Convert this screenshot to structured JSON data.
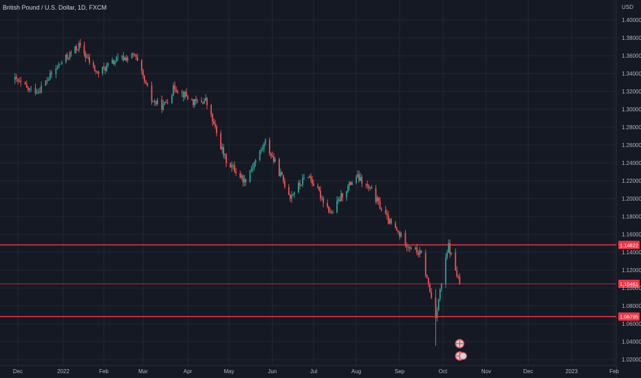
{
  "header": {
    "title": "British Pound / U.S. Dollar, 1D, FXCM",
    "currency": "USD"
  },
  "colors": {
    "background": "#151924",
    "grid": "#232632",
    "up": "#26a69a",
    "down": "#ef5350",
    "level_line": "#f23645",
    "axis_text": "#b2b5be",
    "text": "#d1d4dc"
  },
  "chart_data": {
    "type": "candlestick",
    "title": "British Pound / U.S. Dollar, 1D, FXCM",
    "ylabel": "USD",
    "ylim": [
      1.005,
      1.405
    ],
    "y_ticks": [
      "1.40000",
      "1.38000",
      "1.36000",
      "1.34000",
      "1.32000",
      "1.30000",
      "1.28000",
      "1.26000",
      "1.24000",
      "1.22000",
      "1.20000",
      "1.18000",
      "1.16000",
      "1.14000",
      "1.12000",
      "1.10000",
      "1.08000",
      "1.06000",
      "1.04000",
      "1.02000"
    ],
    "x_ticks": [
      "Dec",
      "2022",
      "Feb",
      "Mar",
      "Apr",
      "May",
      "Jun",
      "Jul",
      "Aug",
      "Sep",
      "Oct",
      "Nov",
      "Dec",
      "2023",
      "Feb"
    ],
    "grid": true,
    "levels": [
      {
        "label": "1.14822",
        "value": 1.14822
      },
      {
        "label": "1.10461",
        "value": 1.10461
      },
      {
        "label": "1.06795",
        "value": 1.06795
      }
    ],
    "close_path": [
      [
        "2021-11-29",
        1.333
      ],
      [
        "2021-12-08",
        1.322
      ],
      [
        "2021-12-15",
        1.321
      ],
      [
        "2021-12-31",
        1.353
      ],
      [
        "2022-01-13",
        1.371
      ],
      [
        "2022-01-27",
        1.34
      ],
      [
        "2022-02-10",
        1.355
      ],
      [
        "2022-02-23",
        1.36
      ],
      [
        "2022-03-07",
        1.31
      ],
      [
        "2022-03-15",
        1.303
      ],
      [
        "2022-03-23",
        1.325
      ],
      [
        "2022-04-06",
        1.307
      ],
      [
        "2022-04-14",
        1.31
      ],
      [
        "2022-04-28",
        1.245
      ],
      [
        "2022-05-12",
        1.22
      ],
      [
        "2022-05-27",
        1.263
      ],
      [
        "2022-06-14",
        1.203
      ],
      [
        "2022-06-27",
        1.227
      ],
      [
        "2022-07-14",
        1.183
      ],
      [
        "2022-07-22",
        1.205
      ],
      [
        "2022-08-01",
        1.225
      ],
      [
        "2022-08-12",
        1.208
      ],
      [
        "2022-08-24",
        1.175
      ],
      [
        "2022-09-07",
        1.148
      ],
      [
        "2022-09-16",
        1.137
      ],
      [
        "2022-09-26",
        1.069
      ],
      [
        "2022-09-28",
        1.088
      ],
      [
        "2022-10-05",
        1.147
      ],
      [
        "2022-10-13",
        1.104
      ]
    ]
  }
}
